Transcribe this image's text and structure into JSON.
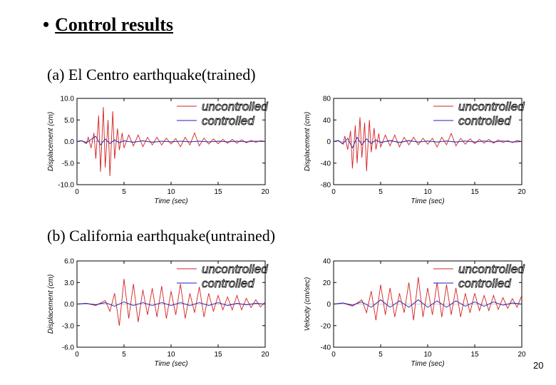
{
  "slide": {
    "bullet": "•",
    "title": "Control results",
    "caption_a": "(a) El Centro earthquake(trained)",
    "caption_b": "(b) California earthquake(untrained)",
    "page_number": "20"
  },
  "colors": {
    "uncontrolled": "#d42020",
    "controlled": "#2020b0"
  },
  "chart_data": [
    {
      "type": "line",
      "xlabel": "Time (sec)",
      "ylabel": "Displacement (cm)",
      "xlim": [
        0,
        20
      ],
      "ylim": [
        -10,
        10
      ],
      "xticks": [
        0,
        5,
        10,
        15,
        20
      ],
      "xtick_labels": [
        "0",
        "5",
        "10",
        "15",
        "20"
      ],
      "yticks": [
        10,
        5,
        0,
        -5,
        -10
      ],
      "ytick_labels": [
        "10.0",
        "5.0",
        "0.0",
        "-5.0",
        "-10.0"
      ],
      "legend": [
        "uncontrolled",
        "controlled"
      ],
      "series": [
        {
          "name": "uncontrolled",
          "x": [
            0,
            0.5,
            1,
            1.2,
            1.5,
            1.8,
            2,
            2.3,
            2.5,
            2.8,
            3,
            3.3,
            3.5,
            3.8,
            4,
            4.3,
            4.5,
            4.8,
            5,
            5.5,
            6,
            6.5,
            7,
            7.5,
            8,
            8.5,
            9,
            9.5,
            10,
            10.5,
            11,
            11.5,
            12,
            12.5,
            13,
            13.5,
            14,
            14.5,
            15,
            15.5,
            16,
            16.5,
            17,
            17.5,
            18,
            18.5,
            19,
            19.5,
            20
          ],
          "values": [
            0,
            0.2,
            -0.5,
            1,
            -1.5,
            2,
            -4,
            6,
            -7,
            8,
            -6,
            5,
            -8,
            7,
            -4,
            3,
            -2,
            2,
            -1.5,
            1.5,
            -1,
            1.5,
            -1.2,
            1,
            -0.8,
            1,
            -0.8,
            0.8,
            -0.6,
            0.7,
            -1.2,
            1,
            -0.8,
            2,
            -1,
            0.8,
            -0.6,
            0.6,
            -0.5,
            0.5,
            -0.4,
            0.5,
            -0.4,
            0.4,
            -0.3,
            0.3,
            -0.2,
            0.2,
            0
          ]
        },
        {
          "name": "controlled",
          "x": [
            0,
            0.5,
            1,
            1.5,
            2,
            2.5,
            3,
            3.5,
            4,
            4.5,
            5,
            6,
            7,
            8,
            9,
            10,
            11,
            12,
            13,
            14,
            15,
            16,
            17,
            18,
            19,
            20
          ],
          "values": [
            0,
            0.2,
            -0.3,
            0.5,
            1.2,
            -0.8,
            0.6,
            -0.5,
            0.4,
            -0.3,
            0.2,
            -0.2,
            0.2,
            -0.2,
            0.1,
            -0.1,
            0.1,
            -0.1,
            0.1,
            -0.1,
            0.1,
            -0.1,
            0.1,
            -0.1,
            0.1,
            0
          ]
        }
      ]
    },
    {
      "type": "line",
      "xlabel": "Time (sec)",
      "ylabel": "Displacement (cm)",
      "xlim": [
        0,
        20
      ],
      "ylim": [
        -80,
        80
      ],
      "xticks": [
        0,
        5,
        10,
        15,
        20
      ],
      "xtick_labels": [
        "0",
        "5",
        "10",
        "15",
        "20"
      ],
      "yticks": [
        80,
        40,
        0,
        -40,
        -80
      ],
      "ytick_labels": [
        "80",
        "40",
        "0",
        "-40",
        "-80"
      ],
      "legend": [
        "uncontrolled",
        "controlled"
      ],
      "series": [
        {
          "name": "uncontrolled",
          "x": [
            0,
            0.5,
            1,
            1.2,
            1.5,
            1.8,
            2,
            2.3,
            2.5,
            2.8,
            3,
            3.3,
            3.5,
            3.8,
            4,
            4.3,
            4.5,
            4.8,
            5,
            5.5,
            6,
            6.5,
            7,
            7.5,
            8,
            8.5,
            9,
            9.5,
            10,
            10.5,
            11,
            11.5,
            12,
            12.5,
            13,
            13.5,
            14,
            14.5,
            15,
            15.5,
            16,
            16.5,
            17,
            17.5,
            18,
            18.5,
            19,
            19.5,
            20
          ],
          "values": [
            0,
            2,
            -5,
            10,
            -15,
            20,
            -50,
            30,
            -40,
            45,
            -30,
            35,
            -55,
            40,
            -20,
            25,
            -15,
            15,
            -10,
            12,
            -8,
            12,
            -10,
            8,
            -6,
            8,
            -6,
            6,
            -5,
            6,
            -10,
            8,
            -6,
            15,
            -8,
            6,
            -5,
            5,
            -4,
            4,
            -3,
            4,
            -3,
            3,
            -2,
            2,
            -2,
            2,
            0
          ]
        },
        {
          "name": "controlled",
          "x": [
            0,
            0.5,
            1,
            1.5,
            2,
            2.5,
            3,
            3.5,
            4,
            4.5,
            5,
            6,
            7,
            8,
            9,
            10,
            11,
            12,
            13,
            14,
            15,
            16,
            17,
            18,
            19,
            20
          ],
          "values": [
            0,
            2,
            -4,
            6,
            -12,
            8,
            -6,
            5,
            -4,
            3,
            -2,
            2,
            -2,
            2,
            -1,
            1,
            -1,
            1,
            -1,
            1,
            -1,
            1,
            -1,
            1,
            -1,
            0
          ]
        }
      ]
    },
    {
      "type": "line",
      "xlabel": "Time (sec)",
      "ylabel": "Displacement (cm)",
      "xlim": [
        0,
        20
      ],
      "ylim": [
        -6,
        6
      ],
      "xticks": [
        0,
        5,
        10,
        15,
        20
      ],
      "xtick_labels": [
        "0",
        "5",
        "10",
        "15",
        "20"
      ],
      "yticks": [
        6,
        3,
        0,
        -3,
        -6
      ],
      "ytick_labels": [
        "6.0",
        "3.0",
        "0.0",
        "-3.0",
        "-6.0"
      ],
      "legend": [
        "uncontrolled",
        "controlled"
      ],
      "series": [
        {
          "name": "uncontrolled",
          "x": [
            0,
            1,
            2,
            3,
            3.5,
            4,
            4.5,
            5,
            5.5,
            6,
            6.5,
            7,
            7.5,
            8,
            8.5,
            9,
            9.5,
            10,
            10.5,
            11,
            11.5,
            12,
            12.5,
            13,
            13.5,
            14,
            14.5,
            15,
            15.5,
            16,
            16.5,
            17,
            17.5,
            18,
            18.5,
            19,
            19.5,
            20
          ],
          "values": [
            0,
            0.1,
            -0.2,
            0.5,
            -1,
            1.5,
            -3,
            3.5,
            -2,
            2.8,
            -2.5,
            2,
            -1.5,
            2.2,
            -1.8,
            2.5,
            -2,
            1.8,
            -1.5,
            2.8,
            -2,
            1.5,
            -1.2,
            2.4,
            -1.8,
            1.5,
            -1,
            1.2,
            -0.8,
            1,
            -0.8,
            1.2,
            -0.8,
            0.8,
            -0.5,
            0.6,
            -0.4,
            0.3
          ]
        },
        {
          "name": "controlled",
          "x": [
            0,
            1,
            2,
            3,
            4,
            5,
            6,
            7,
            8,
            9,
            10,
            11,
            12,
            13,
            14,
            15,
            16,
            17,
            18,
            19,
            20
          ],
          "values": [
            0,
            0.1,
            -0.1,
            0.2,
            -0.3,
            0.3,
            -0.2,
            0.2,
            -0.2,
            0.2,
            -0.2,
            0.2,
            -0.2,
            0.2,
            -0.2,
            0.2,
            -0.2,
            0.1,
            -0.1,
            0.1,
            0
          ]
        }
      ]
    },
    {
      "type": "line",
      "xlabel": "Time (sec)",
      "ylabel": "Velocity (cm/sec)",
      "xlim": [
        0,
        20
      ],
      "ylim": [
        -40,
        40
      ],
      "xticks": [
        0,
        5,
        10,
        15,
        20
      ],
      "xtick_labels": [
        "0",
        "5",
        "10",
        "15",
        "20"
      ],
      "yticks": [
        40,
        20,
        0,
        -20,
        -40
      ],
      "ytick_labels": [
        "40",
        "20",
        "0",
        "-20",
        "-40"
      ],
      "legend": [
        "uncontrolled",
        "controlled"
      ],
      "series": [
        {
          "name": "uncontrolled",
          "x": [
            0,
            1,
            2,
            3,
            3.5,
            4,
            4.5,
            5,
            5.5,
            6,
            6.5,
            7,
            7.5,
            8,
            8.5,
            9,
            9.5,
            10,
            10.5,
            11,
            11.5,
            12,
            12.5,
            13,
            13.5,
            14,
            14.5,
            15,
            15.5,
            16,
            16.5,
            17,
            17.5,
            18,
            18.5,
            19,
            19.5,
            20
          ],
          "values": [
            0,
            1,
            -2,
            4,
            -8,
            12,
            -15,
            18,
            -10,
            15,
            -12,
            10,
            -8,
            20,
            -15,
            25,
            -12,
            15,
            -10,
            20,
            -12,
            18,
            -10,
            15,
            -12,
            10,
            -8,
            10,
            -6,
            8,
            -6,
            8,
            -5,
            6,
            -4,
            5,
            -3,
            8
          ]
        },
        {
          "name": "controlled",
          "x": [
            0,
            1,
            2,
            3,
            4,
            5,
            6,
            7,
            8,
            9,
            10,
            11,
            12,
            13,
            14,
            15,
            16,
            17,
            18,
            19,
            20
          ],
          "values": [
            0,
            1,
            -1,
            2,
            -3,
            4,
            -3,
            3,
            -3,
            4,
            -3,
            3,
            -3,
            3,
            -2,
            2,
            -2,
            2,
            -1,
            1,
            0
          ]
        }
      ]
    }
  ]
}
